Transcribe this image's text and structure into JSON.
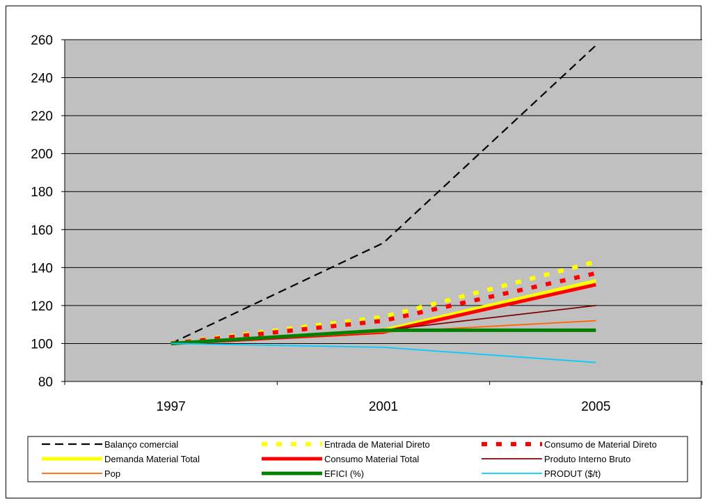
{
  "chart_data": {
    "type": "line",
    "title": "",
    "xlabel": "",
    "ylabel": "",
    "x": [
      "1997",
      "2001",
      "2005"
    ],
    "ylim": [
      80,
      260
    ],
    "yticks": [
      80,
      100,
      120,
      140,
      160,
      180,
      200,
      220,
      240,
      260
    ],
    "grid": true,
    "plot_background": "#c0c0c0",
    "legend_position": "bottom",
    "series": [
      {
        "name": "Balanço comercial",
        "values": [
          100,
          153,
          257
        ],
        "color": "#000000",
        "style": "dashed-thin"
      },
      {
        "name": "Entrada de Material Direto",
        "values": [
          100,
          114,
          143
        ],
        "color": "#ffff00",
        "style": "dotted-thick"
      },
      {
        "name": "Consumo de Material Direto",
        "values": [
          100,
          112,
          137
        ],
        "color": "#ff0000",
        "style": "dotted-thick"
      },
      {
        "name": "Demanda Material Total",
        "values": [
          100,
          107,
          133
        ],
        "color": "#ffff00",
        "style": "solid-thick"
      },
      {
        "name": "Consumo Material Total",
        "values": [
          100,
          106,
          131
        ],
        "color": "#ff0000",
        "style": "solid-thick"
      },
      {
        "name": "Produto Interno Bruto",
        "values": [
          100,
          107,
          120
        ],
        "color": "#800000",
        "style": "solid-thin"
      },
      {
        "name": "Pop",
        "values": [
          100,
          106,
          112
        ],
        "color": "#ff6600",
        "style": "solid-thin"
      },
      {
        "name": "EFICI (%)",
        "values": [
          100,
          107,
          107
        ],
        "color": "#008000",
        "style": "solid-thick"
      },
      {
        "name": "PRODUT ($/t)",
        "values": [
          100,
          98,
          90
        ],
        "color": "#00ccff",
        "style": "solid-thin"
      }
    ]
  }
}
